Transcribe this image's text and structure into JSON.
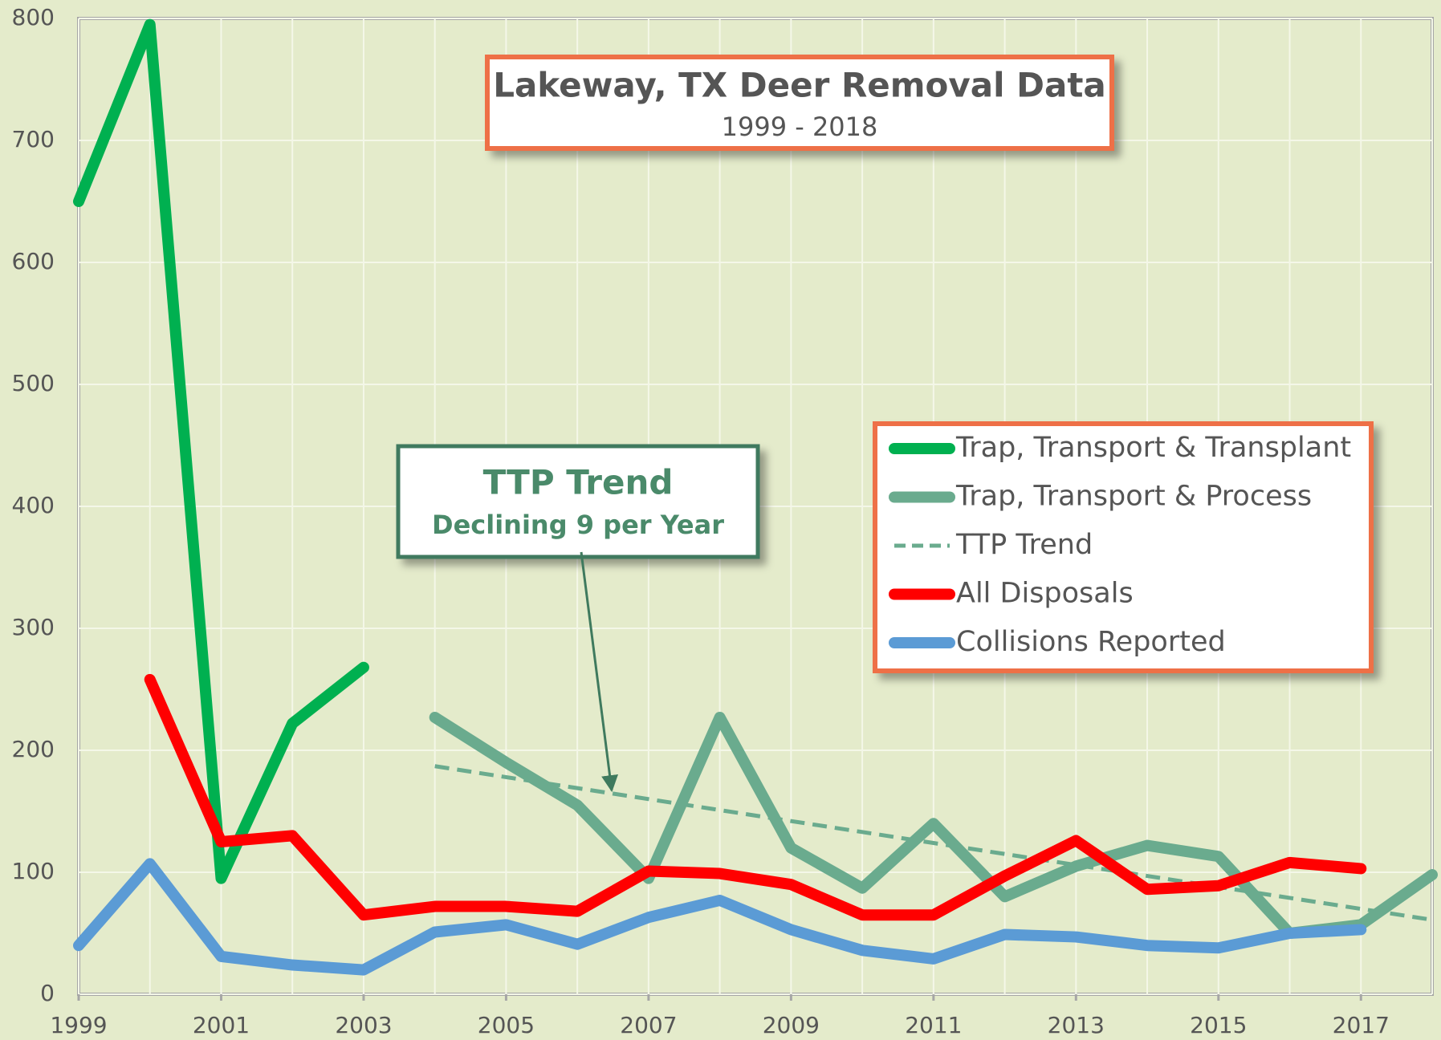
{
  "chart_data": {
    "type": "line",
    "title": "Lakeway, TX Deer Removal Data",
    "subtitle": "1999 - 2018",
    "annotation": {
      "title": "TTP Trend",
      "text": "Declining 9 per Year"
    },
    "x": [
      1999,
      2000,
      2001,
      2002,
      2003,
      2004,
      2005,
      2006,
      2007,
      2008,
      2009,
      2010,
      2011,
      2012,
      2013,
      2014,
      2015,
      2016,
      2017,
      2018
    ],
    "xlim": [
      1999,
      2018
    ],
    "xticks": [
      1999,
      2001,
      2003,
      2005,
      2007,
      2009,
      2011,
      2013,
      2015,
      2017
    ],
    "ylim": [
      0,
      800
    ],
    "yticks": [
      0,
      100,
      200,
      300,
      400,
      500,
      600,
      700,
      800
    ],
    "grid": true,
    "legend": "right",
    "series": [
      {
        "name": "Trap, Transport & Transplant",
        "color": "#00b050",
        "values": [
          650,
          795,
          95,
          222,
          268,
          null,
          null,
          null,
          null,
          null,
          null,
          null,
          null,
          null,
          null,
          null,
          null,
          null,
          null,
          null
        ]
      },
      {
        "name": "Trap, Transport & Process",
        "color": "#6aab8e",
        "values": [
          null,
          null,
          null,
          null,
          null,
          227,
          190,
          155,
          95,
          227,
          120,
          87,
          140,
          80,
          105,
          122,
          113,
          50,
          57,
          98
        ]
      },
      {
        "name": "TTP Trend",
        "color": "#6aab8e",
        "dashed": true,
        "values": [
          null,
          null,
          null,
          null,
          null,
          187,
          178,
          169,
          160,
          151,
          142,
          133,
          124,
          115,
          106,
          97,
          88,
          79,
          70,
          61
        ]
      },
      {
        "name": "All Disposals",
        "color": "#ff0000",
        "values": [
          null,
          258,
          125,
          130,
          65,
          72,
          72,
          68,
          101,
          99,
          90,
          65,
          65,
          97,
          126,
          86,
          89,
          108,
          103,
          null
        ]
      },
      {
        "name": "Collisions Reported",
        "color": "#5b9bd5",
        "values": [
          40,
          107,
          31,
          24,
          20,
          51,
          57,
          41,
          63,
          77,
          53,
          36,
          29,
          49,
          47,
          40,
          38,
          50,
          53,
          null
        ]
      }
    ]
  }
}
